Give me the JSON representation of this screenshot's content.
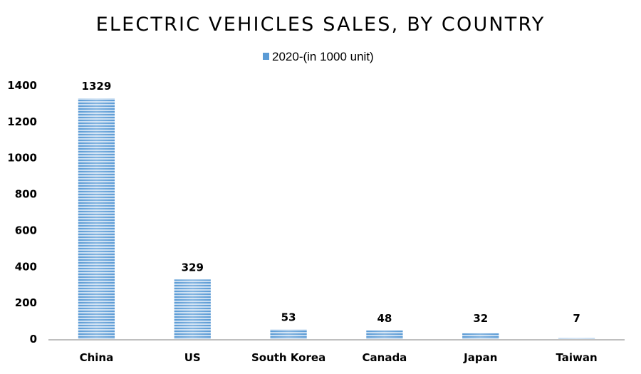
{
  "chart_data": {
    "type": "bar",
    "title": "ELECTRIC VEHICLES SALES, BY COUNTRY",
    "xlabel": "",
    "ylabel": "",
    "categories": [
      "China",
      "US",
      "South Korea",
      "Canada",
      "Japan",
      "Taiwan"
    ],
    "series": [
      {
        "name": "2020-(in 1000 unit)",
        "values": [
          1329,
          329,
          53,
          48,
          32,
          7
        ],
        "data_labels": [
          "1329",
          "329",
          "53",
          "48",
          "32",
          "7"
        ],
        "color": "#5b9bd5",
        "pattern": "horizontal-stripes",
        "stripe_light_color": "#c6dcf1"
      }
    ],
    "ylim": [
      0,
      1400
    ],
    "yticks": [
      0,
      200,
      400,
      600,
      800,
      1000,
      1200,
      1400
    ],
    "grid": false,
    "legend_position": "top-center",
    "axis_color": "#bfbfbf"
  }
}
